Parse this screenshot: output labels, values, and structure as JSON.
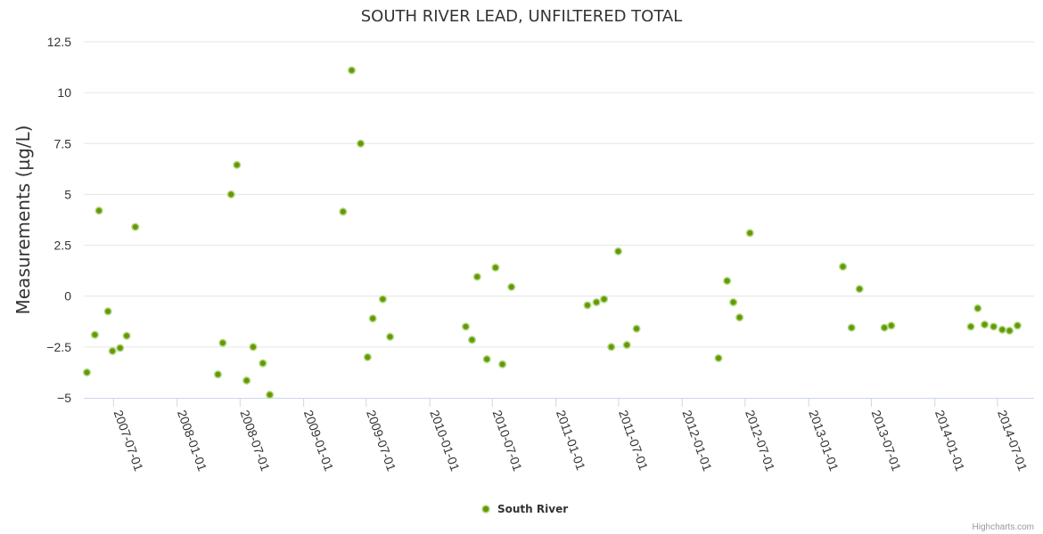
{
  "chart_data": {
    "type": "scatter",
    "title": "SOUTH RIVER LEAD, UNFILTERED TOTAL",
    "ylabel": "Measurements (µg/L)",
    "xlabel": "",
    "ylim": [
      -5,
      12.5
    ],
    "yticks": [
      12.5,
      10,
      7.5,
      5,
      2.5,
      0,
      -2.5,
      -5
    ],
    "ytick_labels": [
      "12.5",
      "10",
      "7.5",
      "5",
      "2.5",
      "0",
      "−2.5",
      "−5"
    ],
    "xlim": [
      "2007-04-06",
      "2014-10-15"
    ],
    "xticks": [
      "2007-07-01",
      "2008-01-01",
      "2008-07-01",
      "2009-01-01",
      "2009-07-01",
      "2010-01-01",
      "2010-07-01",
      "2011-01-01",
      "2011-07-01",
      "2012-01-01",
      "2012-07-01",
      "2013-01-01",
      "2013-07-01",
      "2014-01-01",
      "2014-07-01"
    ],
    "legend": "bottom-center",
    "series": [
      {
        "name": "South River",
        "color": "#669900",
        "points": [
          {
            "x": "2007-04-15",
            "y": -3.75
          },
          {
            "x": "2007-05-08",
            "y": -1.9
          },
          {
            "x": "2007-05-20",
            "y": 4.2
          },
          {
            "x": "2007-06-15",
            "y": -0.75
          },
          {
            "x": "2007-06-28",
            "y": -2.7
          },
          {
            "x": "2007-07-20",
            "y": -2.55
          },
          {
            "x": "2007-08-08",
            "y": -1.95
          },
          {
            "x": "2007-09-02",
            "y": 3.4
          },
          {
            "x": "2008-04-28",
            "y": -3.85
          },
          {
            "x": "2008-05-12",
            "y": -2.3
          },
          {
            "x": "2008-06-05",
            "y": 5.0
          },
          {
            "x": "2008-06-22",
            "y": 6.45
          },
          {
            "x": "2008-07-20",
            "y": -4.15
          },
          {
            "x": "2008-08-08",
            "y": -2.5
          },
          {
            "x": "2008-09-05",
            "y": -3.3
          },
          {
            "x": "2008-09-25",
            "y": -4.85
          },
          {
            "x": "2009-04-25",
            "y": 4.15
          },
          {
            "x": "2009-05-20",
            "y": 11.1
          },
          {
            "x": "2009-06-15",
            "y": 7.5
          },
          {
            "x": "2009-07-05",
            "y": -3.0
          },
          {
            "x": "2009-07-20",
            "y": -1.1
          },
          {
            "x": "2009-08-18",
            "y": -0.15
          },
          {
            "x": "2009-09-08",
            "y": -2.0
          },
          {
            "x": "2010-04-15",
            "y": -1.5
          },
          {
            "x": "2010-05-03",
            "y": -2.15
          },
          {
            "x": "2010-05-18",
            "y": 0.95
          },
          {
            "x": "2010-06-15",
            "y": -3.1
          },
          {
            "x": "2010-07-10",
            "y": 1.4
          },
          {
            "x": "2010-07-30",
            "y": -3.35
          },
          {
            "x": "2010-08-25",
            "y": 0.45
          },
          {
            "x": "2011-04-02",
            "y": -0.45
          },
          {
            "x": "2011-04-28",
            "y": -0.3
          },
          {
            "x": "2011-05-20",
            "y": -0.15
          },
          {
            "x": "2011-06-10",
            "y": -2.5
          },
          {
            "x": "2011-06-30",
            "y": 2.2
          },
          {
            "x": "2011-07-25",
            "y": -2.4
          },
          {
            "x": "2011-08-22",
            "y": -1.6
          },
          {
            "x": "2012-04-15",
            "y": -3.05
          },
          {
            "x": "2012-05-10",
            "y": 0.75
          },
          {
            "x": "2012-05-28",
            "y": -0.3
          },
          {
            "x": "2012-06-15",
            "y": -1.05
          },
          {
            "x": "2012-07-15",
            "y": 3.1
          },
          {
            "x": "2013-04-10",
            "y": 1.45
          },
          {
            "x": "2013-05-05",
            "y": -1.55
          },
          {
            "x": "2013-05-28",
            "y": 0.35
          },
          {
            "x": "2013-08-08",
            "y": -1.55
          },
          {
            "x": "2013-08-28",
            "y": -1.45
          },
          {
            "x": "2014-04-15",
            "y": -1.5
          },
          {
            "x": "2014-05-05",
            "y": -0.6
          },
          {
            "x": "2014-05-25",
            "y": -1.4
          },
          {
            "x": "2014-06-20",
            "y": -1.5
          },
          {
            "x": "2014-07-15",
            "y": -1.65
          },
          {
            "x": "2014-08-05",
            "y": -1.7
          },
          {
            "x": "2014-08-28",
            "y": -1.45
          }
        ]
      }
    ]
  },
  "credit": "Highcharts.com"
}
